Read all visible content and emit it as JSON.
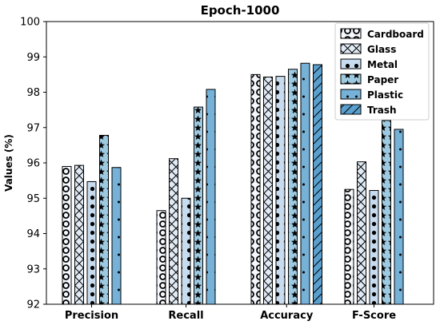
{
  "chart_data": {
    "type": "bar",
    "title": "Epoch-1000",
    "xlabel": "",
    "ylabel": "Values (%)",
    "ylim": [
      92,
      100
    ],
    "yticks": [
      "92",
      "93",
      "94",
      "95",
      "96",
      "97",
      "98",
      "99",
      "100"
    ],
    "categories": [
      "Precision",
      "Recall",
      "Accuracy",
      "F-Score"
    ],
    "grid": false,
    "legend_position": "top-right",
    "series": [
      {
        "name": "Cardboard",
        "values": [
          95.9,
          94.65,
          98.5,
          95.25
        ],
        "color": "#f4f8fc",
        "pattern": "circles"
      },
      {
        "name": "Glass",
        "values": [
          95.93,
          96.12,
          98.43,
          96.03
        ],
        "color": "#e1ebf6",
        "pattern": "crosshatch"
      },
      {
        "name": "Metal",
        "values": [
          95.47,
          95.0,
          98.45,
          95.22
        ],
        "color": "#c8dcef",
        "pattern": "dots"
      },
      {
        "name": "Paper",
        "values": [
          96.78,
          97.58,
          98.65,
          97.2
        ],
        "color": "#9ecae1",
        "pattern": "stars"
      },
      {
        "name": "Plastic",
        "values": [
          95.87,
          98.08,
          98.82,
          96.95
        ],
        "color": "#76b1d8",
        "pattern": "small-dots"
      },
      {
        "name": "Trash",
        "values": [
          null,
          null,
          98.78,
          null
        ],
        "color": "#5aa0cf",
        "pattern": "diagonal"
      }
    ]
  }
}
